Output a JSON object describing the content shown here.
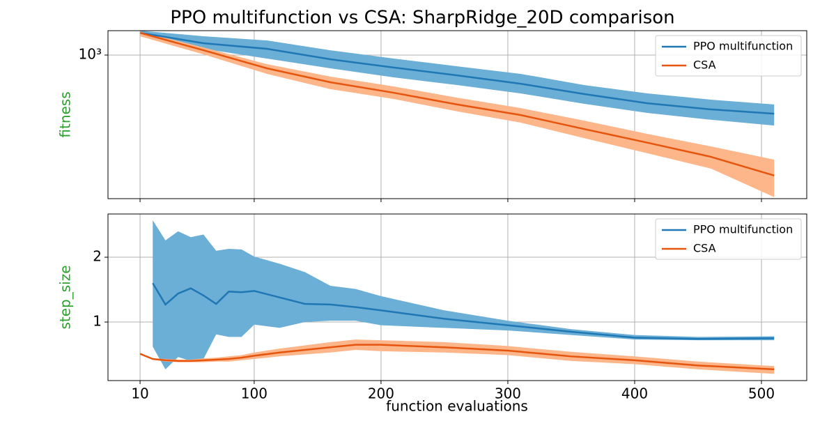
{
  "chart_data": [
    {
      "type": "line",
      "title": "PPO multifunction vs CSA: SharpRidge_20D comparison",
      "ylabel": "fitness",
      "ylabel_color": "#2ca02c",
      "ylog": true,
      "grid": true,
      "legend": "upper right",
      "show_xtick_labels": false,
      "xlim": [
        -15.3,
        535.7
      ],
      "xticks": [
        10,
        100,
        200,
        300,
        400,
        500
      ],
      "ylim": [
        286,
        1237
      ],
      "yticks": [
        {
          "value": 1000,
          "label": "10³"
        }
      ],
      "x": [
        10,
        60,
        110,
        160,
        210,
        260,
        310,
        360,
        410,
        460,
        510
      ],
      "series": [
        {
          "name": "PPO multifunction",
          "color": "#1f77b4",
          "band_color": "#6baed6",
          "values": [
            1214,
            1109,
            1056,
            964,
            897,
            838,
            779,
            712,
            657,
            623,
            600
          ],
          "upper": [
            1237,
            1178,
            1136,
            1043,
            970,
            907,
            849,
            770,
            716,
            678,
            650
          ],
          "lower": [
            1207,
            1056,
            970,
            891,
            823,
            770,
            716,
            654,
            604,
            569,
            541
          ]
        },
        {
          "name": "CSA",
          "color": "#e6550d",
          "band_color": "#fdb58a",
          "values": [
            1214,
            1043,
            891,
            789,
            720,
            650,
            593,
            525,
            466,
            412,
            350
          ],
          "upper": [
            1229,
            1069,
            924,
            829,
            761,
            690,
            630,
            565,
            503,
            451,
            402
          ],
          "lower": [
            1178,
            1006,
            849,
            743,
            682,
            612,
            555,
            485,
            425,
            372,
            290
          ]
        }
      ]
    },
    {
      "type": "line",
      "xlabel": "function evaluations",
      "ylabel": "step_size",
      "ylabel_color": "#2ca02c",
      "ylog": false,
      "grid": true,
      "legend": "upper right",
      "show_xtick_labels": true,
      "xlim": [
        -15.3,
        535.7
      ],
      "xticks": [
        10,
        100,
        200,
        300,
        400,
        500
      ],
      "ylim": [
        0.097,
        2.667
      ],
      "yticks": [
        1,
        2
      ],
      "x": [
        10,
        20,
        30,
        40,
        50,
        60,
        70,
        80,
        90,
        100,
        120,
        140,
        160,
        180,
        200,
        250,
        300,
        350,
        400,
        450,
        510
      ],
      "series": [
        {
          "name": "PPO multifunction",
          "color": "#1f77b4",
          "band_color": "#6baed6",
          "values": [
            null,
            1.6,
            1.27,
            1.44,
            1.52,
            1.41,
            1.28,
            1.47,
            1.46,
            1.48,
            1.38,
            1.28,
            1.27,
            1.23,
            1.18,
            1.05,
            0.95,
            0.85,
            0.76,
            0.74,
            0.75
          ],
          "upper": [
            null,
            2.57,
            2.26,
            2.4,
            2.31,
            2.35,
            2.1,
            2.13,
            2.12,
            2.01,
            1.9,
            1.77,
            1.56,
            1.51,
            1.4,
            1.18,
            1.02,
            0.89,
            0.8,
            0.77,
            0.78
          ],
          "lower": [
            null,
            0.62,
            0.27,
            0.46,
            0.4,
            0.43,
            0.81,
            0.77,
            0.77,
            0.96,
            0.91,
            1.0,
            1.02,
            1.02,
            0.95,
            0.91,
            0.87,
            0.8,
            0.73,
            0.72,
            0.72
          ]
        },
        {
          "name": "CSA",
          "color": "#e6550d",
          "band_color": "#fdb58a",
          "values": [
            0.51,
            0.43,
            0.41,
            0.4,
            0.4,
            0.41,
            0.42,
            0.43,
            0.45,
            0.48,
            0.53,
            0.57,
            0.61,
            0.65,
            0.65,
            0.61,
            0.56,
            0.47,
            0.41,
            0.33,
            0.27
          ],
          "upper": [
            0.51,
            0.44,
            0.43,
            0.42,
            0.42,
            0.44,
            0.45,
            0.47,
            0.49,
            0.53,
            0.59,
            0.64,
            0.69,
            0.73,
            0.72,
            0.69,
            0.63,
            0.54,
            0.47,
            0.39,
            0.32
          ],
          "lower": [
            0.51,
            0.42,
            0.39,
            0.38,
            0.38,
            0.38,
            0.39,
            0.39,
            0.41,
            0.43,
            0.47,
            0.5,
            0.53,
            0.57,
            0.55,
            0.53,
            0.49,
            0.4,
            0.35,
            0.27,
            0.2
          ]
        }
      ]
    }
  ]
}
